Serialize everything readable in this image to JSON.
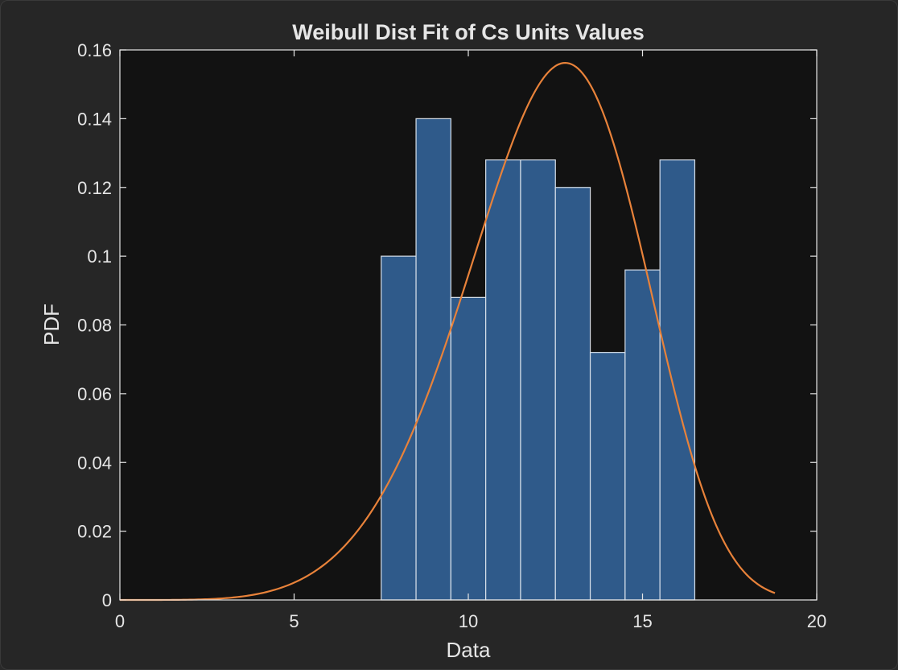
{
  "chart_data": {
    "type": "bar",
    "title": "Weibull Dist Fit of Cs Units Values",
    "xlabel": "Data",
    "ylabel": "PDF",
    "xlim": [
      0,
      20
    ],
    "ylim": [
      0,
      0.16
    ],
    "xticks": [
      0,
      5,
      10,
      15,
      20
    ],
    "xtick_labels": [
      "0",
      "5",
      "10",
      "15",
      "20"
    ],
    "yticks": [
      0,
      0.02,
      0.04,
      0.06,
      0.08,
      0.1,
      0.12,
      0.14,
      0.16
    ],
    "ytick_labels": [
      "0",
      "0.02",
      "0.04",
      "0.06",
      "0.08",
      "0.1",
      "0.12",
      "0.14",
      "0.16"
    ],
    "grid": false,
    "histogram": {
      "bin_edges": [
        7.5,
        8.5,
        9.5,
        10.5,
        11.5,
        12.5,
        13.5,
        14.5,
        15.5,
        16.5
      ],
      "values": [
        0.1,
        0.14,
        0.088,
        0.128,
        0.128,
        0.12,
        0.072,
        0.096,
        0.128
      ],
      "color": "#2f5a8a"
    },
    "fit_curve": {
      "type": "weibull_pdf",
      "scale": 13.25,
      "shape": 5.53,
      "x_range": [
        0,
        18.8
      ],
      "color": "#e8823a"
    },
    "colors": {
      "axes_background": "#121212",
      "axes_color": "#e6e6e6",
      "figure_background": "#262626"
    }
  }
}
